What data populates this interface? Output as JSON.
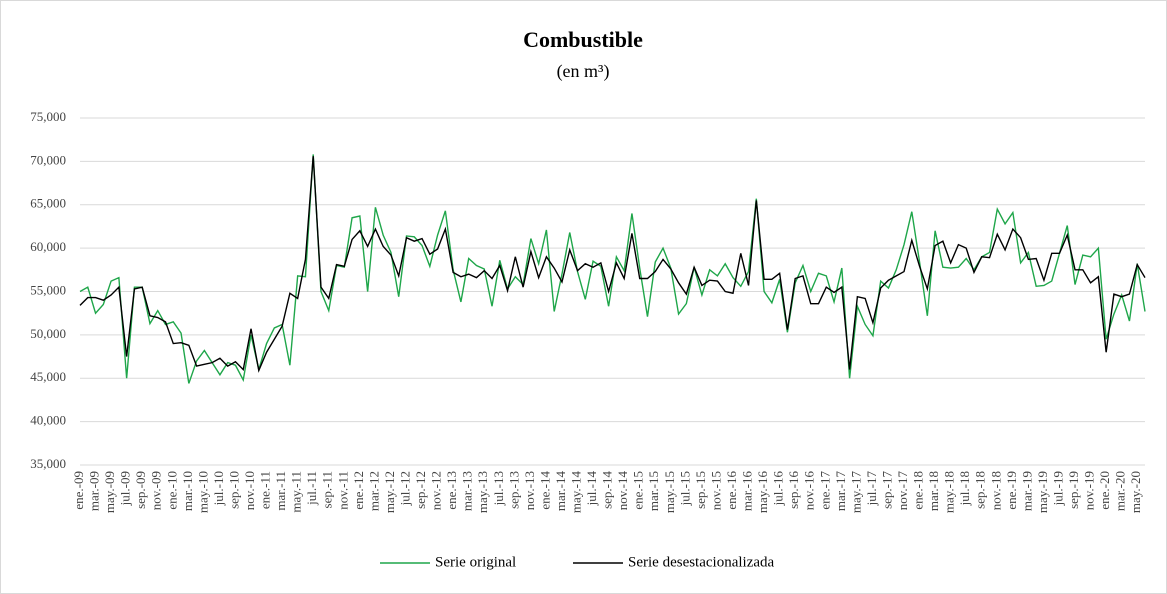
{
  "chart_data": {
    "type": "line",
    "title": "Combustible",
    "subtitle": "(en m³)",
    "categories": [
      "ene.-09",
      null,
      "mar.-09",
      null,
      "may.-09",
      null,
      "jul.-09",
      null,
      "sep.-09",
      null,
      "nov.-09",
      null,
      "ene.-10",
      null,
      "mar.-10",
      null,
      "may.-10",
      null,
      "jul.-10",
      null,
      "sep.-10",
      null,
      "nov.-10",
      null,
      "ene.-11",
      null,
      "mar.-11",
      null,
      "may.-11",
      null,
      "jul.-11",
      null,
      "sep.-11",
      null,
      "nov.-11",
      null,
      "ene.-12",
      null,
      "mar.-12",
      null,
      "may.-12",
      null,
      "jul.-12",
      null,
      "sep.-12",
      null,
      "nov.-12",
      null,
      "ene.-13",
      null,
      "mar.-13",
      null,
      "may.-13",
      null,
      "jul.-13",
      null,
      "sep.-13",
      null,
      "nov.-13",
      null,
      "ene.-14",
      null,
      "mar.-14",
      null,
      "may.-14",
      null,
      "jul.-14",
      null,
      "sep.-14",
      null,
      "nov.-14",
      null,
      "ene.-15",
      null,
      "mar.-15",
      null,
      "may.-15",
      null,
      "jul.-15",
      null,
      "sep.-15",
      null,
      "nov.-15",
      null,
      "ene.-16",
      null,
      "mar.-16",
      null,
      "may.-16",
      null,
      "jul.-16",
      null,
      "sep.-16",
      null,
      "nov.-16",
      null,
      "ene.-17",
      null,
      "mar.-17",
      null,
      "may.-17",
      null,
      "jul.-17",
      null,
      "sep.-17",
      null,
      "nov.-17",
      null,
      "ene.-18",
      null,
      "mar.-18",
      null,
      "may.-18",
      null,
      "jul.-18",
      null,
      "sep.-18",
      null,
      "nov.-18",
      null,
      "ene.-19",
      null,
      "mar.-19",
      null,
      "may.-19",
      null,
      "jul.-19",
      null,
      "sep.-19",
      null,
      "nov.-19",
      null,
      "ene.-20",
      null,
      "mar.-20",
      null,
      "may.-20",
      null
    ],
    "series": [
      {
        "name": "Serie original",
        "color": "#1fa64a",
        "values": [
          55000,
          55500,
          52500,
          53500,
          56200,
          56600,
          45000,
          55500,
          55500,
          51300,
          52800,
          51200,
          51500,
          50200,
          44400,
          47000,
          48200,
          46800,
          45400,
          46800,
          46500,
          44800,
          50000,
          46000,
          49000,
          50800,
          51200,
          46500,
          56800,
          56700,
          70800,
          55000,
          52800,
          58000,
          57800,
          63500,
          63700,
          55000,
          64700,
          61500,
          59500,
          54400,
          61400,
          61300,
          60300,
          57900,
          61500,
          64300,
          57500,
          53800,
          58800,
          58000,
          57600,
          53300,
          58600,
          55300,
          56700,
          55800,
          61100,
          58200,
          62100,
          52700,
          57000,
          61800,
          57300,
          54100,
          58500,
          57900,
          53300,
          59000,
          57400,
          64000,
          57700,
          52100,
          58400,
          60000,
          57700,
          52400,
          53600,
          57800,
          54600,
          57500,
          56800,
          58200,
          56600,
          55600,
          57300,
          65700,
          55000,
          53700,
          56400,
          50300,
          56000,
          58000,
          55000,
          57100,
          56800,
          53800,
          57700,
          45000,
          53300,
          51200,
          49900,
          56200,
          55400,
          57500,
          60400,
          64200,
          58400,
          52200,
          62000,
          57800,
          57700,
          57800,
          58800,
          57500,
          59000,
          59500,
          64500,
          62800,
          64100,
          58300,
          59500,
          55600,
          55700,
          56200,
          59400,
          62600,
          55800,
          59200,
          59000,
          60000,
          49500,
          52400,
          54600,
          51600,
          58200,
          52700
        ]
      },
      {
        "name": "Serie desestacionalizada",
        "color": "#000000",
        "values": [
          53400,
          54300,
          54300,
          54000,
          54600,
          55500,
          47500,
          55300,
          55500,
          52200,
          52000,
          51500,
          49000,
          49100,
          48800,
          46400,
          46600,
          46800,
          47300,
          46400,
          46900,
          46000,
          50700,
          45900,
          48000,
          49500,
          51000,
          54800,
          54200,
          58700,
          70600,
          55500,
          54200,
          58100,
          57900,
          61000,
          62000,
          60200,
          62200,
          60200,
          59200,
          56800,
          61200,
          60800,
          61100,
          59300,
          59900,
          62200,
          57200,
          56700,
          57000,
          56600,
          57400,
          56500,
          58000,
          55100,
          59000,
          55500,
          59600,
          56600,
          59000,
          57700,
          56100,
          59800,
          57400,
          58200,
          57800,
          58300,
          55000,
          58300,
          56500,
          61700,
          56500,
          56500,
          57300,
          58700,
          57600,
          56000,
          54700,
          57800,
          55700,
          56300,
          56200,
          55000,
          54800,
          59400,
          55700,
          65500,
          56400,
          56400,
          57100,
          50600,
          56500,
          56800,
          53600,
          53600,
          55500,
          54900,
          55500,
          46000,
          54400,
          54200,
          51400,
          55400,
          56300,
          56800,
          57300,
          60900,
          57900,
          55300,
          60300,
          60800,
          58300,
          60400,
          60000,
          57200,
          59000,
          58900,
          61600,
          59800,
          62200,
          61200,
          58700,
          58800,
          56300,
          59400,
          59400,
          61500,
          57500,
          57500,
          56000,
          56700,
          48000,
          54700,
          54400,
          54700,
          58100,
          56600
        ]
      }
    ],
    "ylim": [
      35000,
      75000
    ],
    "yticks": [
      {
        "value": 35000,
        "label": "35,000"
      },
      {
        "value": 40000,
        "label": "40,000"
      },
      {
        "value": 45000,
        "label": "45,000"
      },
      {
        "value": 50000,
        "label": "50,000"
      },
      {
        "value": 55000,
        "label": "55,000"
      },
      {
        "value": 60000,
        "label": "60,000"
      },
      {
        "value": 65000,
        "label": "65,000"
      },
      {
        "value": 70000,
        "label": "70,000"
      },
      {
        "value": 75000,
        "label": "75,000"
      }
    ],
    "grid": true,
    "legend": "bottom"
  }
}
